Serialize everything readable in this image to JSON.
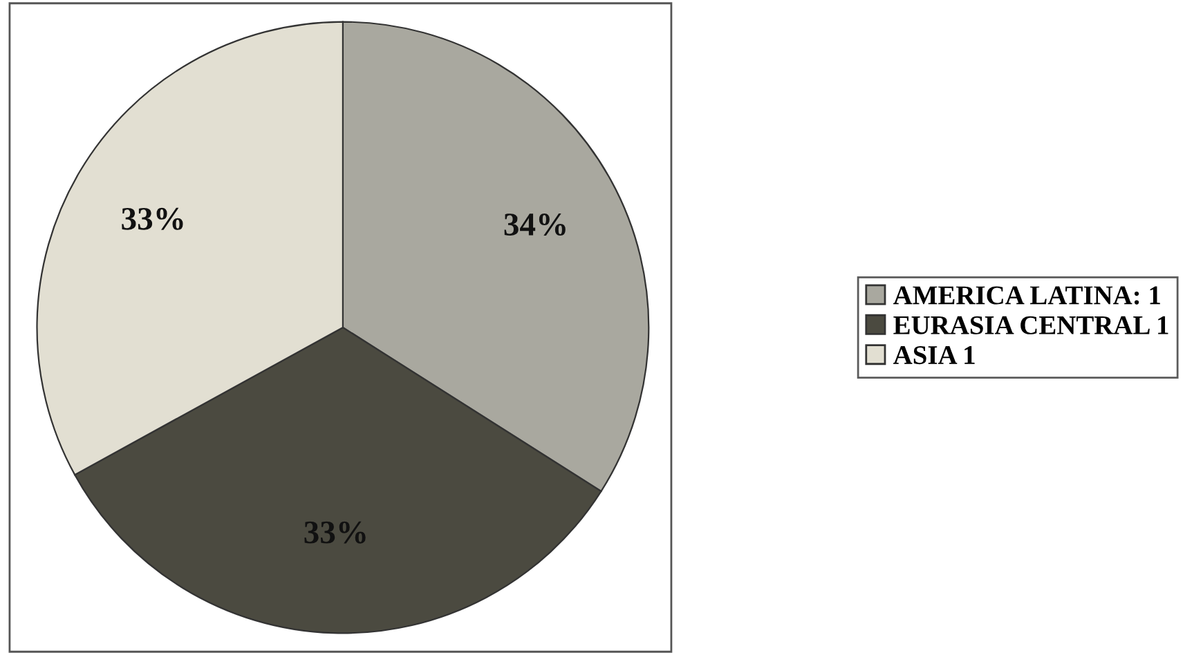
{
  "chart_data": {
    "type": "pie",
    "categories": [
      "AMERICA LATINA: 1",
      "EURASIA CENTRAL 1",
      "ASIA 1"
    ],
    "values": [
      34,
      33,
      33
    ],
    "colors": [
      "#a9a89f",
      "#4b4a40",
      "#e2dfd2"
    ],
    "value_labels": [
      "34%",
      "33%",
      "33%"
    ],
    "legend": "right"
  }
}
